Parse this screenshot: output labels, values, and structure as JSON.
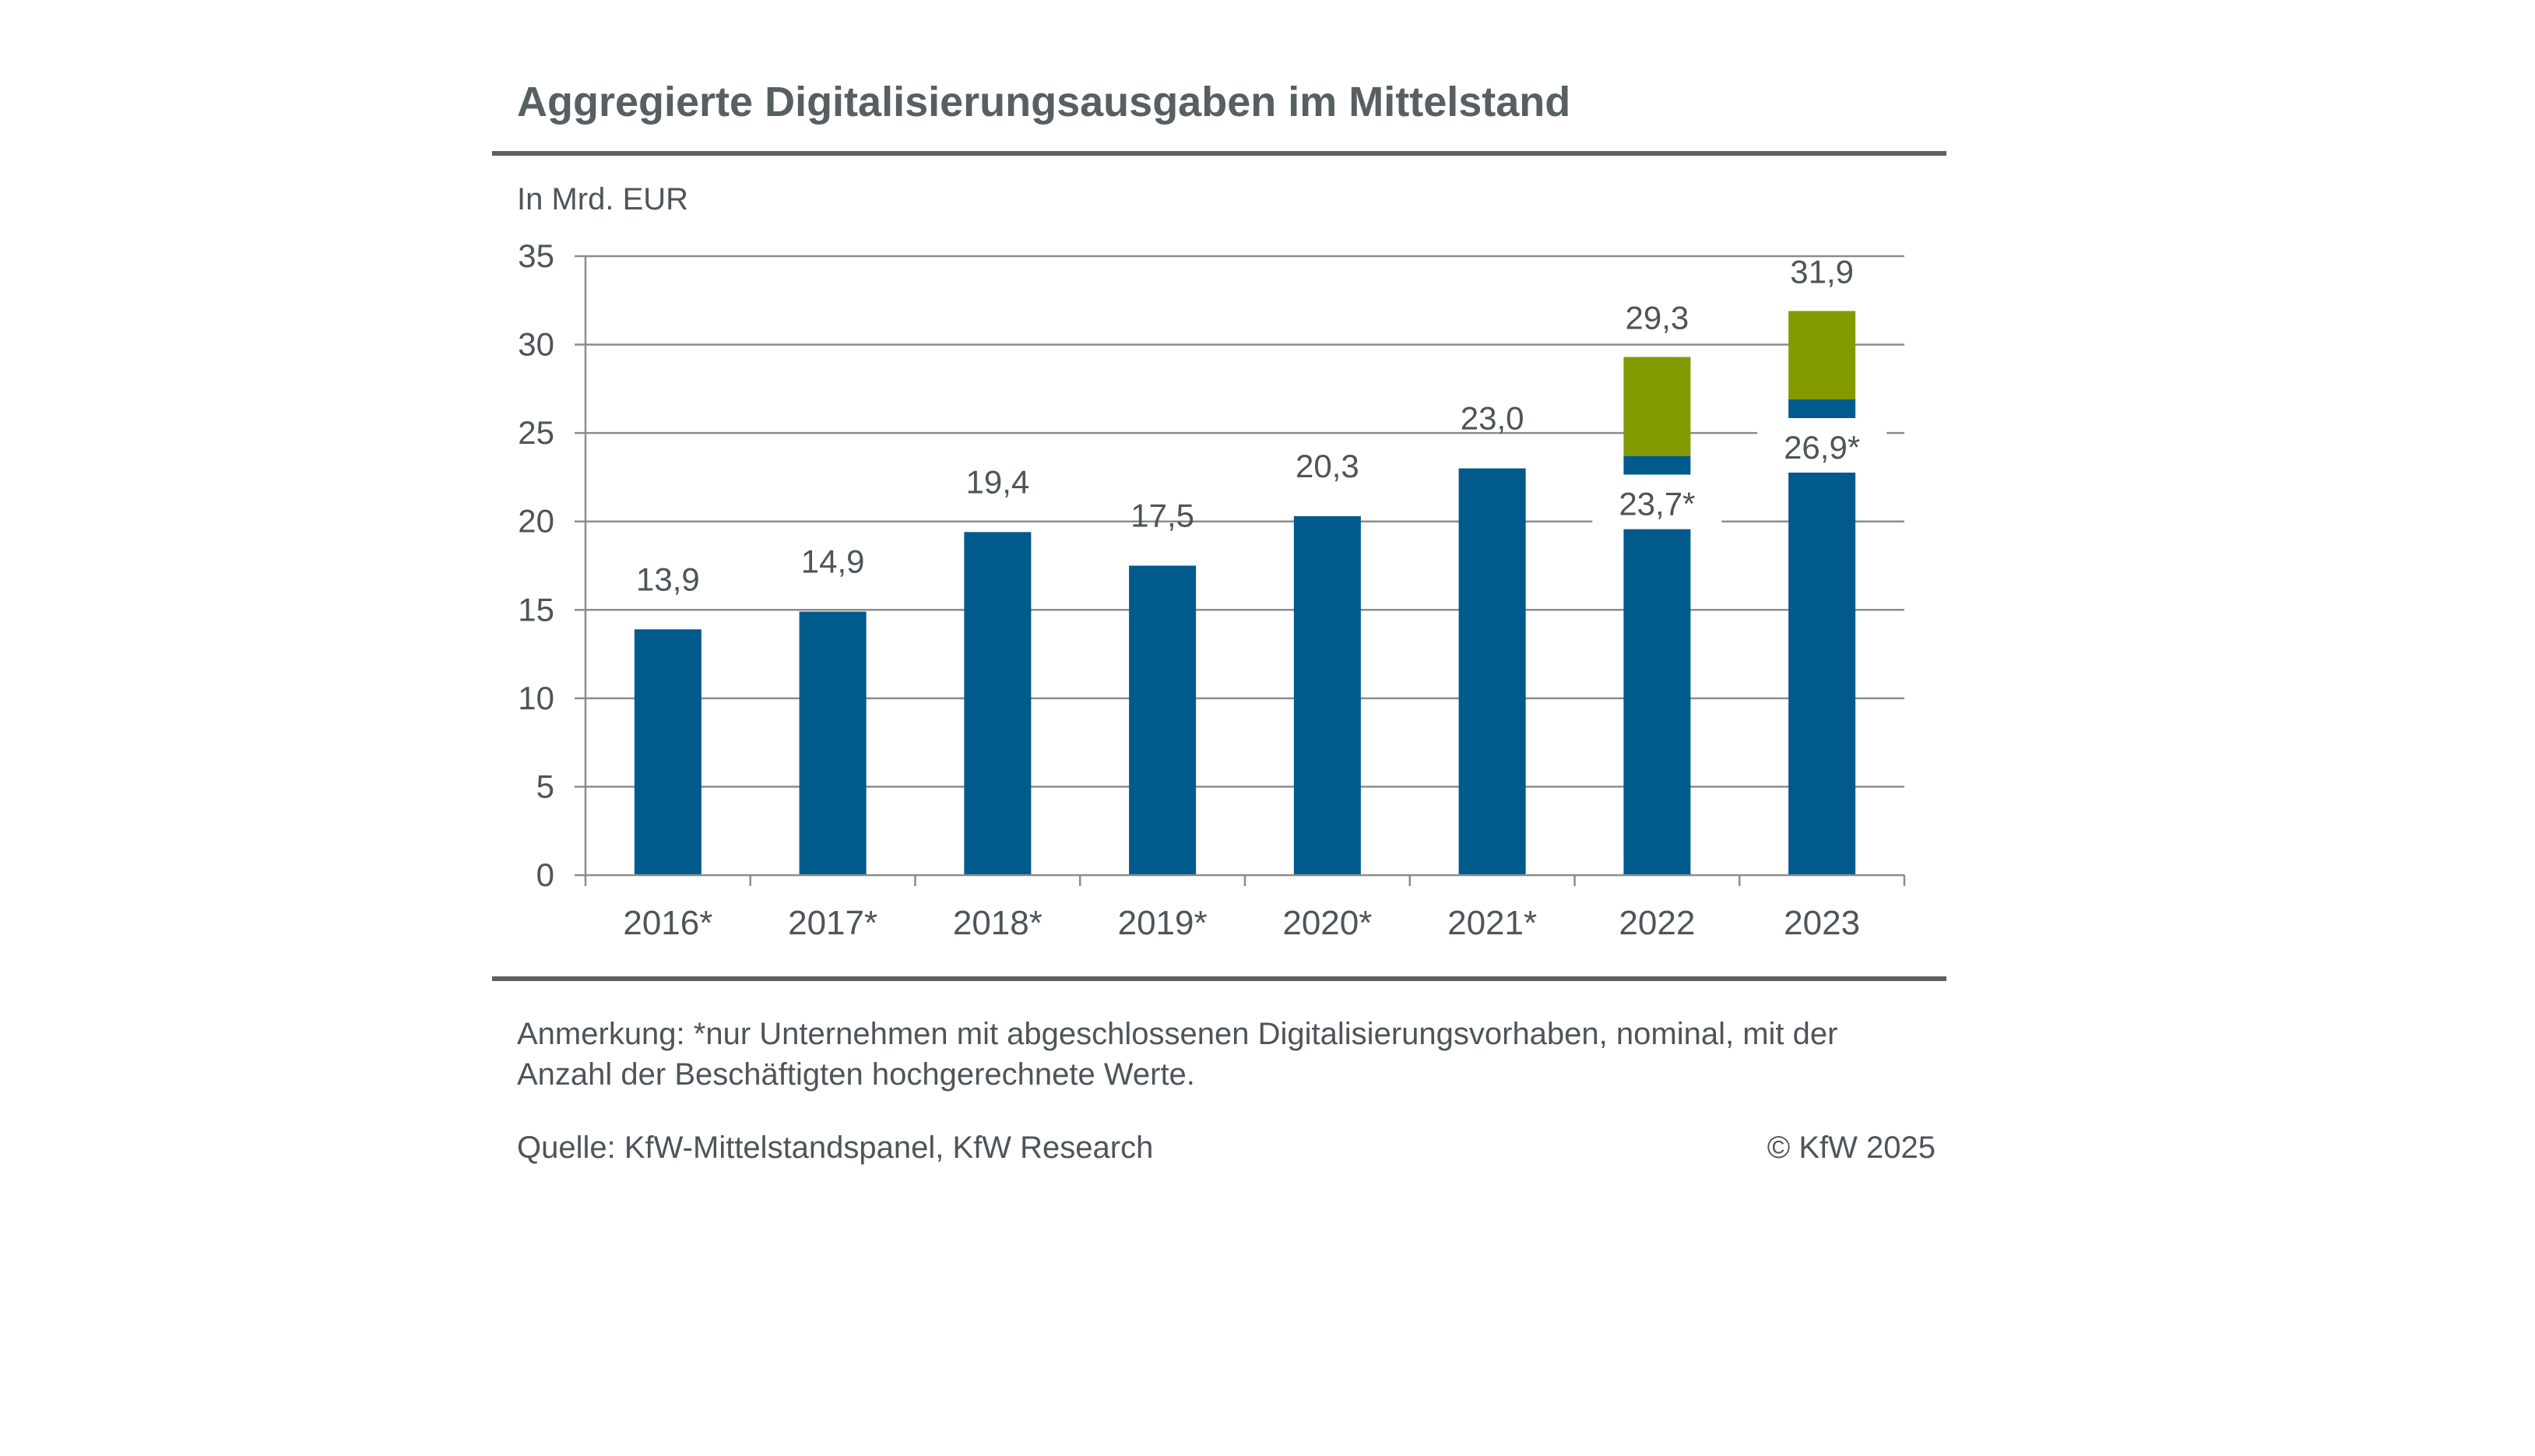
{
  "header": {
    "title": "Aggregierte Digitalisierungsausgaben im Mittelstand",
    "unit_label": "In Mrd. EUR"
  },
  "footer": {
    "note": "Anmerkung: *nur Unternehmen mit abgeschlossenen Digitalisierungsvorhaben, nominal, mit der Anzahl der Beschäftigten hochgerechnete Werte.",
    "source": "Quelle: KfW-Mittelstandspanel, KfW Research",
    "copyright": "© KfW 2025"
  },
  "colors": {
    "bar_blue": "#005a8c",
    "bar_green": "#839b00",
    "grid": "#8c8c8c",
    "text": "#4d5559"
  },
  "chart_data": {
    "type": "bar",
    "ylim": [
      0,
      35
    ],
    "yticks": [
      0,
      5,
      10,
      15,
      20,
      25,
      30,
      35
    ],
    "grid": true,
    "categories": [
      "2016*",
      "2017*",
      "2018*",
      "2019*",
      "2020*",
      "2021*",
      "2022",
      "2023"
    ],
    "values": [
      13.9,
      14.9,
      19.4,
      17.5,
      20.3,
      23.0,
      29.3,
      31.9
    ],
    "value_labels": [
      "13,9",
      "14,9",
      "19,4",
      "17,5",
      "20,3",
      "23,0",
      "29,3",
      "31,9"
    ],
    "comparison_values": [
      null,
      null,
      null,
      null,
      null,
      null,
      23.7,
      26.9
    ],
    "comparison_labels": [
      null,
      null,
      null,
      null,
      null,
      null,
      "23,7*",
      "26,9*"
    ]
  }
}
